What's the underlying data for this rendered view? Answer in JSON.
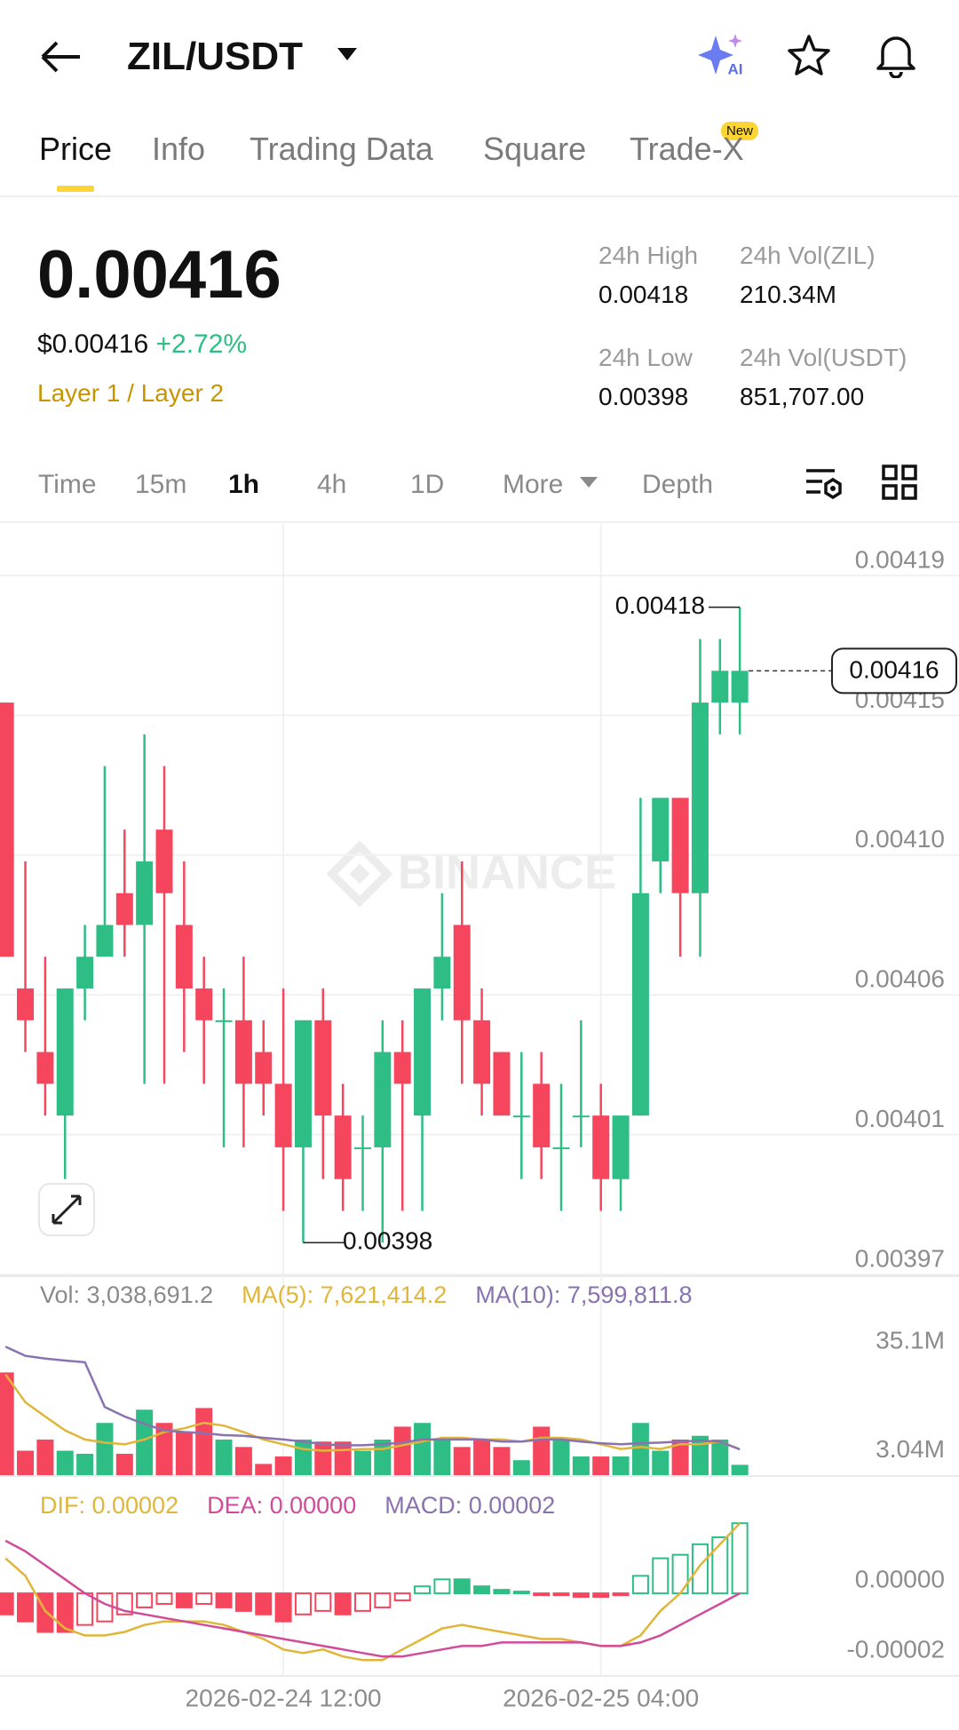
{
  "header": {
    "pair": "ZIL/USDT",
    "ai_badge": "AI"
  },
  "tabs": {
    "items": [
      "Price",
      "Info",
      "Trading Data",
      "Square",
      "Trade-X"
    ],
    "active": 0,
    "new_badge": "New"
  },
  "ticker": {
    "last": "0.00416",
    "fiat": "$0.00416",
    "change": "+2.72%",
    "tags": "Layer 1 / Layer 2"
  },
  "stats": [
    {
      "label": "24h High",
      "value": "0.00418"
    },
    {
      "label": "24h Vol(ZIL)",
      "value": "210.34M"
    },
    {
      "label": "24h Low",
      "value": "0.00398"
    },
    {
      "label": "24h Vol(USDT)",
      "value": "851,707.00"
    }
  ],
  "intervals": {
    "items": [
      "Time",
      "15m",
      "1h",
      "4h",
      "1D",
      "More",
      "Depth"
    ],
    "active": 2
  },
  "chart_data": [
    {
      "type": "candlestick",
      "watermark": "BINANCE",
      "categories": [
        null,
        null,
        null,
        null,
        null,
        null,
        null,
        null,
        null,
        null,
        null,
        null,
        null,
        null,
        "2026-02-24 12:00",
        null,
        null,
        null,
        null,
        null,
        null,
        null,
        null,
        null,
        null,
        null,
        null,
        null,
        null,
        null,
        "2026-02-25 04:00",
        null,
        null,
        null,
        null,
        null,
        null,
        null
      ],
      "open": [
        0.00415,
        0.00406,
        0.00404,
        0.00402,
        0.00406,
        0.00407,
        0.00409,
        0.00408,
        0.00411,
        0.00408,
        0.00406,
        0.00405,
        0.00405,
        0.00404,
        0.00403,
        0.00401,
        0.00405,
        0.00402,
        0.00401,
        0.00401,
        0.00404,
        0.00402,
        0.00406,
        0.00408,
        0.00405,
        0.00404,
        0.00402,
        0.00403,
        0.00401,
        0.00402,
        0.00402,
        0.004,
        0.00402,
        0.0041,
        0.00412,
        0.00409,
        0.00415,
        0.00415
      ],
      "high": [
        0.00415,
        0.0041,
        0.00407,
        0.00406,
        0.00408,
        0.00413,
        0.00411,
        0.00414,
        0.00413,
        0.0041,
        0.00407,
        0.00406,
        0.00407,
        0.00405,
        0.00406,
        0.00405,
        0.00406,
        0.00403,
        0.00402,
        0.00405,
        0.00405,
        0.00406,
        0.00409,
        0.0041,
        0.00406,
        0.00404,
        0.00404,
        0.00404,
        0.00403,
        0.00405,
        0.00403,
        0.00402,
        0.00412,
        0.00412,
        0.00412,
        0.00417,
        0.00417,
        0.00418
      ],
      "low": [
        0.00407,
        0.00404,
        0.00402,
        0.004,
        0.00405,
        0.00407,
        0.00407,
        0.00403,
        0.00403,
        0.00404,
        0.00403,
        0.00401,
        0.00401,
        0.00402,
        0.00399,
        0.00398,
        0.004,
        0.00399,
        0.00399,
        0.00398,
        0.00399,
        0.00399,
        0.00405,
        0.00403,
        0.00402,
        0.00402,
        0.004,
        0.004,
        0.00399,
        0.00401,
        0.00399,
        0.00399,
        0.00402,
        0.00409,
        0.00407,
        0.00407,
        0.00414,
        0.00414
      ],
      "close": [
        0.00407,
        0.00405,
        0.00403,
        0.00406,
        0.00407,
        0.00408,
        0.00408,
        0.0041,
        0.00409,
        0.00406,
        0.00405,
        0.00405,
        0.00403,
        0.00403,
        0.00401,
        0.00405,
        0.00402,
        0.004,
        0.00401,
        0.00404,
        0.00403,
        0.00406,
        0.00407,
        0.00405,
        0.00403,
        0.00402,
        0.00402,
        0.00401,
        0.00401,
        0.00402,
        0.004,
        0.00402,
        0.00409,
        0.00412,
        0.00409,
        0.00415,
        0.00416,
        0.00416
      ],
      "up_color": "#2ebd85",
      "down_color": "#f6465d",
      "ylim": [
        0.00397,
        0.00419
      ],
      "yticks": [
        0.00419,
        {
          "value": 0.004146,
          "label": "0.00415"
        },
        {
          "value": 0.004102,
          "label": "0.00410"
        },
        {
          "value": 0.004058,
          "label": "0.00406"
        },
        {
          "value": 0.004014,
          "label": "0.00401"
        },
        0.00397
      ],
      "grid": true,
      "max_marker": {
        "index": 37,
        "value": 0.00418
      },
      "min_marker": {
        "index": 15,
        "value": 0.00398
      },
      "last_price": 0.00416
    },
    {
      "type": "bar",
      "series": [
        {
          "legend": "Vol: 3,038,691.2",
          "color": "#8a8a8a",
          "values": [
            30300000,
            7200000,
            10500000,
            7200000,
            6300000,
            15400000,
            6300000,
            19300000,
            15400000,
            12700000,
            19800000,
            10500000,
            8300000,
            3300000,
            5500000,
            10500000,
            9900000,
            9900000,
            7200000,
            10500000,
            14300000,
            15400000,
            10500000,
            8300000,
            10500000,
            8300000,
            4400000,
            14300000,
            10500000,
            5500000,
            5500000,
            5500000,
            15400000,
            7200000,
            10500000,
            11600000,
            10500000,
            3038691.2
          ]
        },
        {
          "legend": "MA(5): 7,621,414.2",
          "color": "#e0b63a",
          "values": [
            29700000,
            21500000,
            17300000,
            13200000,
            10500000,
            9600000,
            9100000,
            10500000,
            12700000,
            13800000,
            15400000,
            14600000,
            12700000,
            10500000,
            9100000,
            7700000,
            7200000,
            7400000,
            7700000,
            7700000,
            8800000,
            9900000,
            11000000,
            11000000,
            10500000,
            10500000,
            9900000,
            11000000,
            11000000,
            10500000,
            9100000,
            7700000,
            8300000,
            7700000,
            9100000,
            9100000,
            9900000,
            7621414.2
          ]
        },
        {
          "legend": "MA(10): 7,599,811.8",
          "color": "#8a72b0",
          "values": [
            37900000,
            35200000,
            34400000,
            33800000,
            33300000,
            20100000,
            17300000,
            15100000,
            13200000,
            12700000,
            12400000,
            11800000,
            11600000,
            11000000,
            10500000,
            9900000,
            9100000,
            8800000,
            8800000,
            9100000,
            9600000,
            10500000,
            10500000,
            10500000,
            10500000,
            9900000,
            9900000,
            10500000,
            10500000,
            9900000,
            9400000,
            9100000,
            9400000,
            9600000,
            9900000,
            10200000,
            9900000,
            7599811.8
          ]
        }
      ],
      "ylim": [
        0,
        38000000
      ],
      "yticks": [
        {
          "value": 35100000,
          "label": "35.1M"
        },
        {
          "value": 3040000,
          "label": "3.04M"
        }
      ]
    },
    {
      "type": "macd",
      "series": [
        {
          "legend": "DIF: 0.00002",
          "color": "#e0b63a",
          "style": "line",
          "values": [
            1e-05,
            5e-06,
            -5e-06,
            -1e-05,
            -1.2e-05,
            -1.2e-05,
            -1.1e-05,
            -9e-06,
            -8e-06,
            -8e-06,
            -8e-06,
            -9e-06,
            -1.1e-05,
            -1.3e-05,
            -1.6e-05,
            -1.7e-05,
            -1.6e-05,
            -1.8e-05,
            -1.9e-05,
            -1.9e-05,
            -1.6e-05,
            -1.3e-05,
            -1e-05,
            -9e-06,
            -1e-05,
            -1.1e-05,
            -1.2e-05,
            -1.3e-05,
            -1.3e-05,
            -1.4e-05,
            -1.5e-05,
            -1.5e-05,
            -1.2e-05,
            -5e-06,
            0,
            8e-06,
            1.4e-05,
            2e-05
          ]
        },
        {
          "legend": "DEA: 0.00000",
          "color": "#d14b9b",
          "style": "line",
          "values": [
            1.5e-05,
            1.2e-05,
            8e-06,
            4e-06,
            0,
            -3e-06,
            -5e-06,
            -6e-06,
            -7e-06,
            -8e-06,
            -9e-06,
            -1e-05,
            -1.1e-05,
            -1.2e-05,
            -1.3e-05,
            -1.4e-05,
            -1.5e-05,
            -1.6e-05,
            -1.7e-05,
            -1.8e-05,
            -1.8e-05,
            -1.7e-05,
            -1.6e-05,
            -1.5e-05,
            -1.5e-05,
            -1.4e-05,
            -1.4e-05,
            -1.4e-05,
            -1.4e-05,
            -1.4e-05,
            -1.5e-05,
            -1.5e-05,
            -1.4e-05,
            -1.2e-05,
            -9e-06,
            -6e-06,
            -3e-06,
            0
          ]
        },
        {
          "legend": "MACD: 0.00002",
          "color": "#8a72b0",
          "style": "histogram",
          "values": [
            -6e-06,
            -8e-06,
            -1.1e-05,
            -1.1e-05,
            -9e-06,
            -8e-06,
            -6e-06,
            -4e-06,
            -3e-06,
            -4e-06,
            -3e-06,
            -4e-06,
            -5e-06,
            -6e-06,
            -8e-06,
            -6e-06,
            -5e-06,
            -6e-06,
            -5e-06,
            -4e-06,
            -2e-06,
            2e-06,
            4e-06,
            4e-06,
            2e-06,
            1e-06,
            5e-07,
            -5e-07,
            -5e-07,
            -1e-06,
            -1e-06,
            -5e-07,
            5e-06,
            1e-05,
            1.1e-05,
            1.4e-05,
            1.6e-05,
            2e-05
          ]
        }
      ],
      "ylim": [
        -2.2e-05,
        2.84e-05
      ],
      "yticks": [
        {
          "value": 0,
          "label": "0.00000"
        },
        {
          "value": -2e-05,
          "label": "-0.00002"
        }
      ]
    }
  ]
}
